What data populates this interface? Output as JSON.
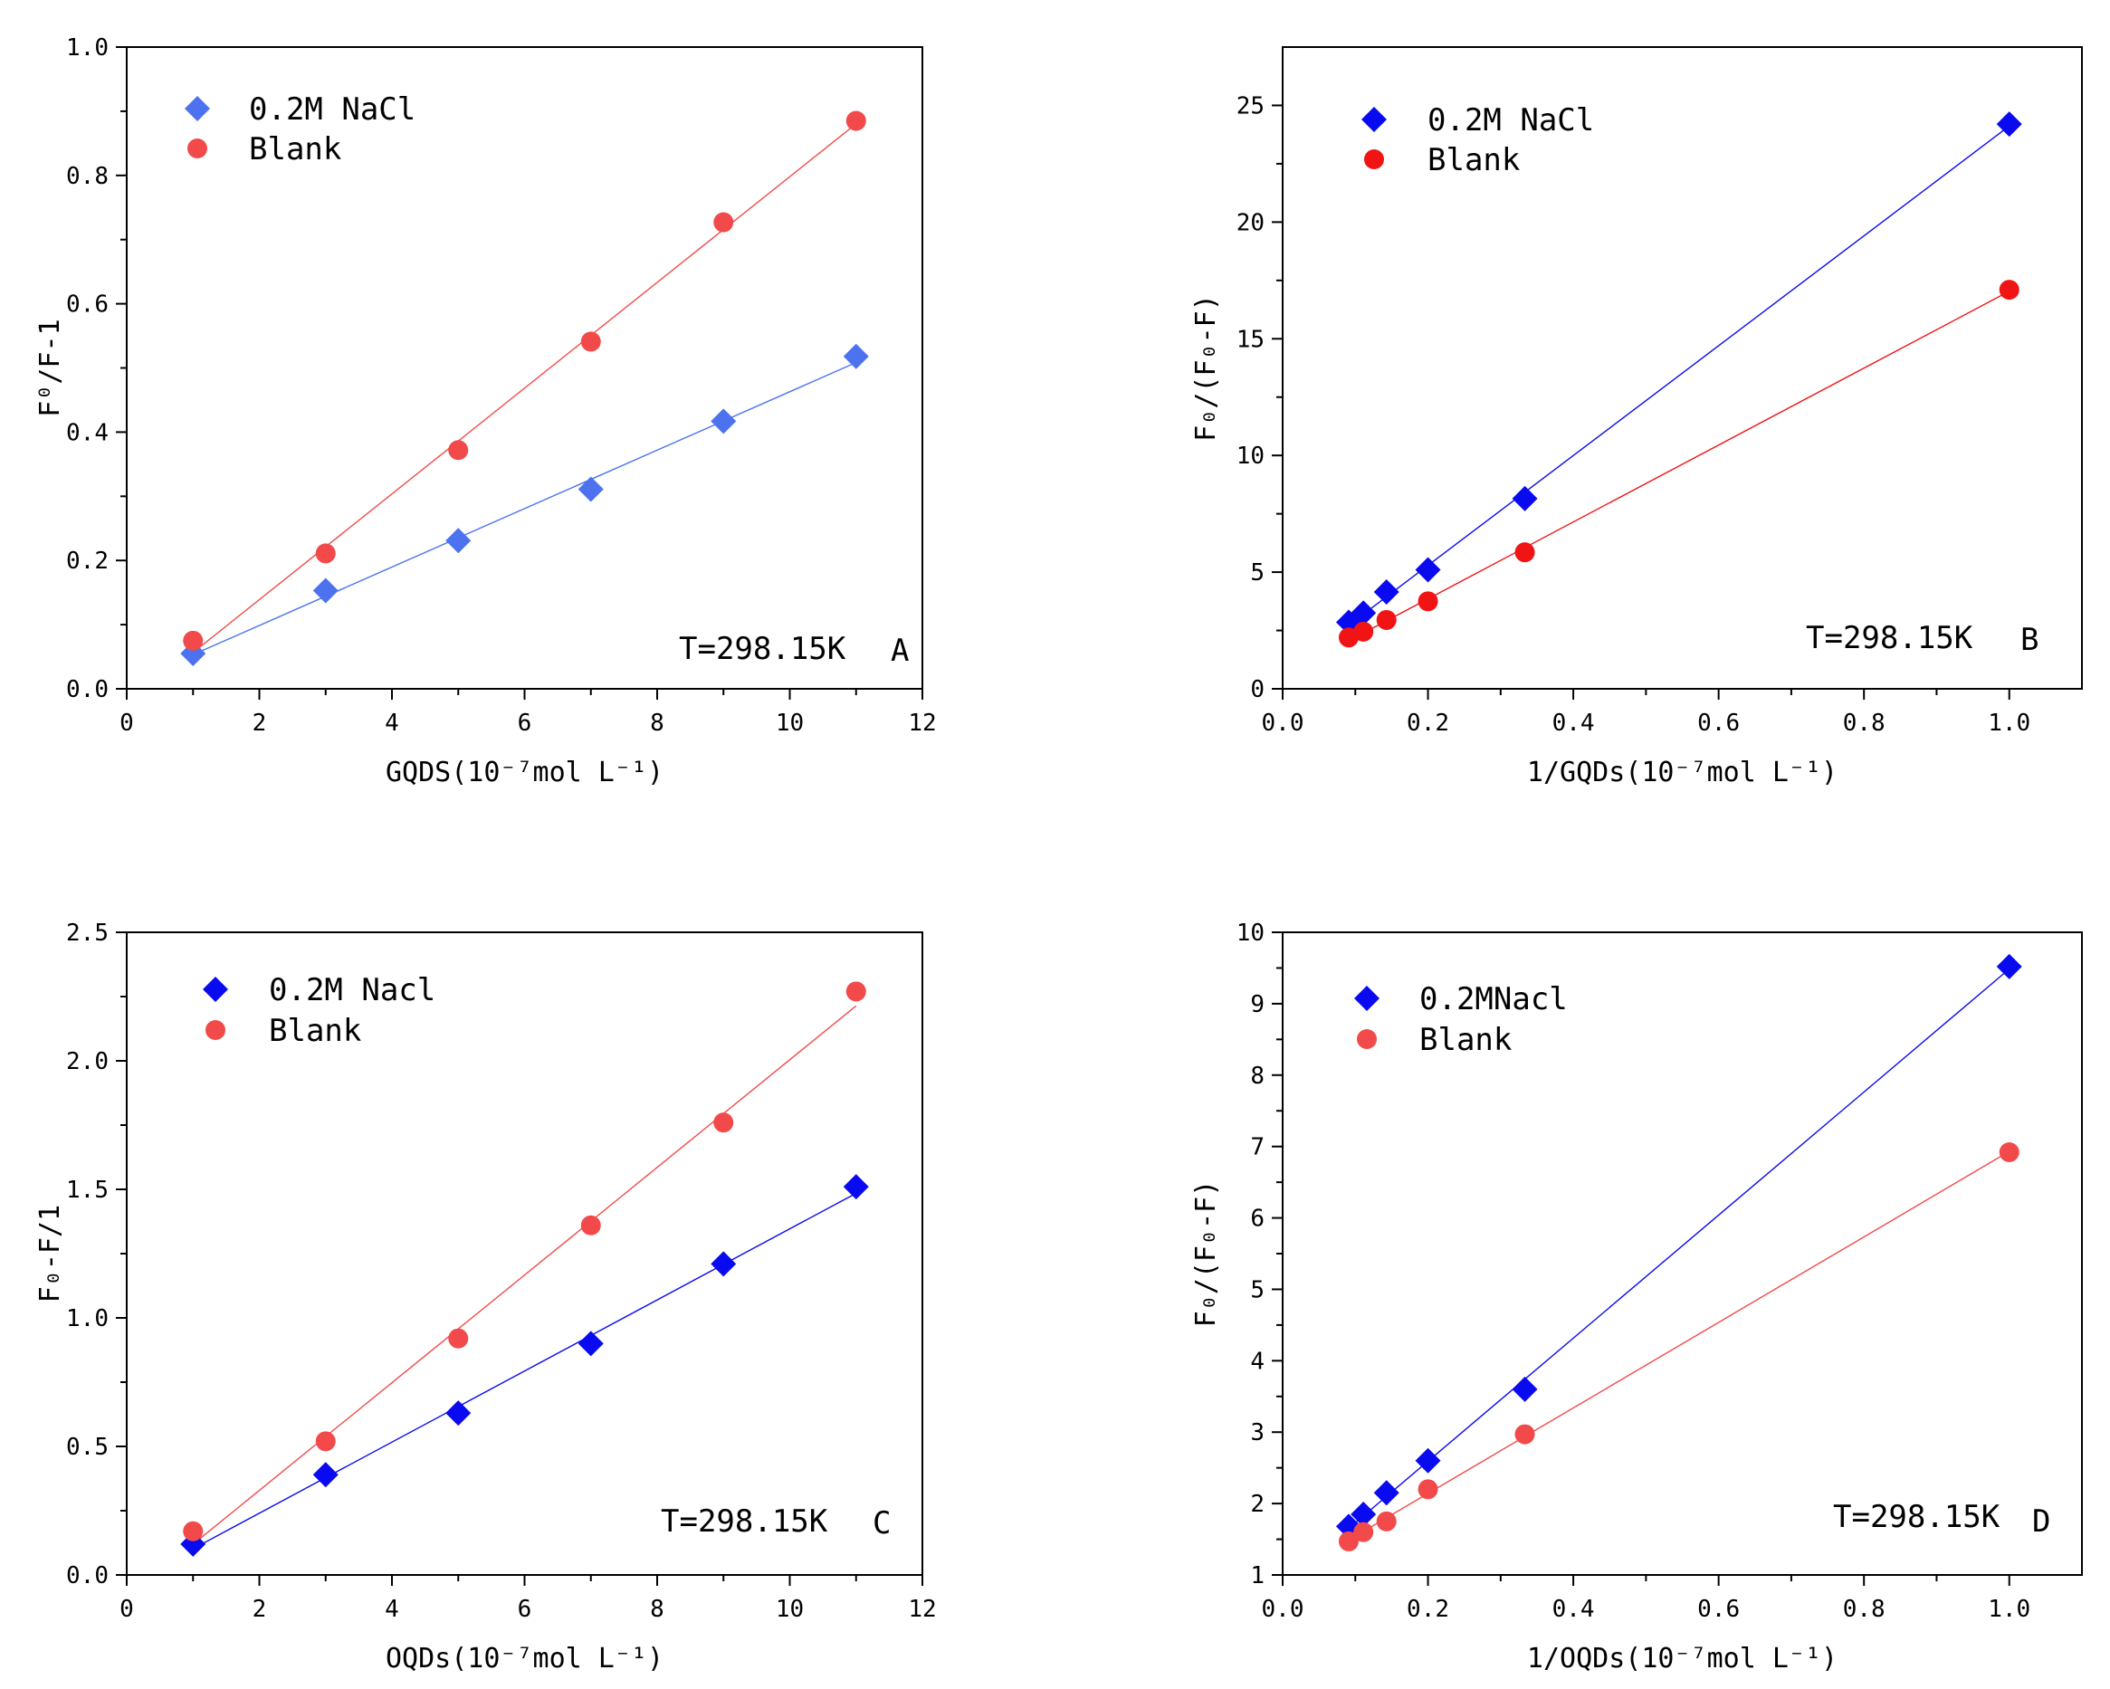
{
  "chart_data": [
    {
      "type": "scatter",
      "panel": "A",
      "xlabel": "GQDS(10⁻⁷mol L⁻¹)",
      "ylabel": "F⁰/F-1",
      "xlim": [
        0,
        12
      ],
      "ylim": [
        0,
        1.0
      ],
      "xticks": [
        0,
        2,
        4,
        6,
        8,
        10,
        12
      ],
      "yticks": [
        0.0,
        0.2,
        0.4,
        0.6,
        0.8,
        1.0
      ],
      "xtick_labels": [
        "0",
        "2",
        "4",
        "6",
        "8",
        "10",
        "12"
      ],
      "ytick_labels": [
        "0.0",
        "0.2",
        "0.4",
        "0.6",
        "0.8",
        "1.0"
      ],
      "annotation": "T=298.15K",
      "panel_label": "A",
      "legend_position": "top-left",
      "series": [
        {
          "name": "0.2M NaCl",
          "marker": "diamond",
          "color": "#4c72f0",
          "x": [
            1,
            3,
            5,
            7,
            9,
            11
          ],
          "y": [
            0.055,
            0.153,
            0.231,
            0.311,
            0.417,
            0.518
          ]
        },
        {
          "name": "Blank",
          "marker": "circle",
          "color": "#f24a4a",
          "x": [
            1,
            3,
            5,
            7,
            9,
            11
          ],
          "y": [
            0.075,
            0.211,
            0.372,
            0.541,
            0.727,
            0.885
          ]
        }
      ]
    },
    {
      "type": "scatter",
      "panel": "B",
      "xlabel": "1/GQDs(10⁻⁷mol L⁻¹)",
      "ylabel": "F₀/(F₀-F)",
      "xlim": [
        0,
        1.1
      ],
      "ylim": [
        0,
        27.5
      ],
      "xticks": [
        0.0,
        0.2,
        0.4,
        0.6,
        0.8,
        1.0
      ],
      "yticks": [
        0,
        5,
        10,
        15,
        20,
        25
      ],
      "xtick_labels": [
        "0.0",
        "0.2",
        "0.4",
        "0.6",
        "0.8",
        "1.0"
      ],
      "ytick_labels": [
        "0",
        "5",
        "10",
        "15",
        "20",
        "25"
      ],
      "annotation": "T=298.15K",
      "panel_label": "B",
      "legend_position": "top-left",
      "series": [
        {
          "name": "0.2M NaCl",
          "marker": "diamond",
          "color": "#0a0af0",
          "x": [
            0.0909,
            0.1111,
            0.1429,
            0.2,
            0.3333,
            1.0
          ],
          "y": [
            2.85,
            3.25,
            4.15,
            5.1,
            8.15,
            24.2
          ]
        },
        {
          "name": "Blank",
          "marker": "circle",
          "color": "#f01414",
          "x": [
            0.0909,
            0.1111,
            0.1429,
            0.2,
            0.3333,
            1.0
          ],
          "y": [
            2.2,
            2.45,
            2.95,
            3.75,
            5.85,
            17.1
          ]
        }
      ]
    },
    {
      "type": "scatter",
      "panel": "C",
      "xlabel": "OQDs(10⁻⁷mol L⁻¹)",
      "ylabel": "F₀-F/1",
      "xlim": [
        0,
        12
      ],
      "ylim": [
        0,
        2.5
      ],
      "xticks": [
        0,
        2,
        4,
        6,
        8,
        10,
        12
      ],
      "yticks": [
        0.0,
        0.5,
        1.0,
        1.5,
        2.0,
        2.5
      ],
      "xtick_labels": [
        "0",
        "2",
        "4",
        "6",
        "8",
        "10",
        "12"
      ],
      "ytick_labels": [
        "0.0",
        "0.5",
        "1.0",
        "1.5",
        "2.0",
        "2.5"
      ],
      "annotation": "T=298.15K",
      "panel_label": "C",
      "legend_position": "top-left",
      "series": [
        {
          "name": "0.2M Nacl",
          "marker": "diamond",
          "color": "#0a0af0",
          "x": [
            1,
            3,
            5,
            7,
            9,
            11
          ],
          "y": [
            0.12,
            0.39,
            0.63,
            0.9,
            1.21,
            1.51
          ]
        },
        {
          "name": "Blank",
          "marker": "circle",
          "color": "#f24a4a",
          "x": [
            1,
            3,
            5,
            7,
            9,
            11
          ],
          "y": [
            0.17,
            0.52,
            0.92,
            1.36,
            1.76,
            2.27
          ]
        }
      ]
    },
    {
      "type": "scatter",
      "panel": "D",
      "xlabel": "1/OQDs(10⁻⁷mol L⁻¹)",
      "ylabel": "F₀/(F₀-F)",
      "xlim": [
        0,
        1.1
      ],
      "ylim": [
        1,
        10
      ],
      "xticks": [
        0.0,
        0.2,
        0.4,
        0.6,
        0.8,
        1.0
      ],
      "yticks": [
        1,
        2,
        3,
        4,
        5,
        6,
        7,
        8,
        9,
        10
      ],
      "xtick_labels": [
        "0.0",
        "0.2",
        "0.4",
        "0.6",
        "0.8",
        "1.0"
      ],
      "ytick_labels": [
        "1",
        "2",
        "3",
        "4",
        "5",
        "6",
        "7",
        "8",
        "9",
        "10"
      ],
      "annotation": "T=298.15K",
      "panel_label": "D",
      "legend_position": "top-left",
      "series": [
        {
          "name": "0.2MNacl",
          "marker": "diamond",
          "color": "#0a0af0",
          "x": [
            0.0909,
            0.1111,
            0.1429,
            0.2,
            0.3333,
            1.0
          ],
          "y": [
            1.68,
            1.85,
            2.15,
            2.6,
            3.6,
            9.52
          ]
        },
        {
          "name": "Blank",
          "marker": "circle",
          "color": "#f24a4a",
          "x": [
            0.0909,
            0.1111,
            0.1429,
            0.2,
            0.3333,
            1.0
          ],
          "y": [
            1.47,
            1.6,
            1.75,
            2.2,
            2.97,
            6.92
          ]
        }
      ]
    }
  ]
}
